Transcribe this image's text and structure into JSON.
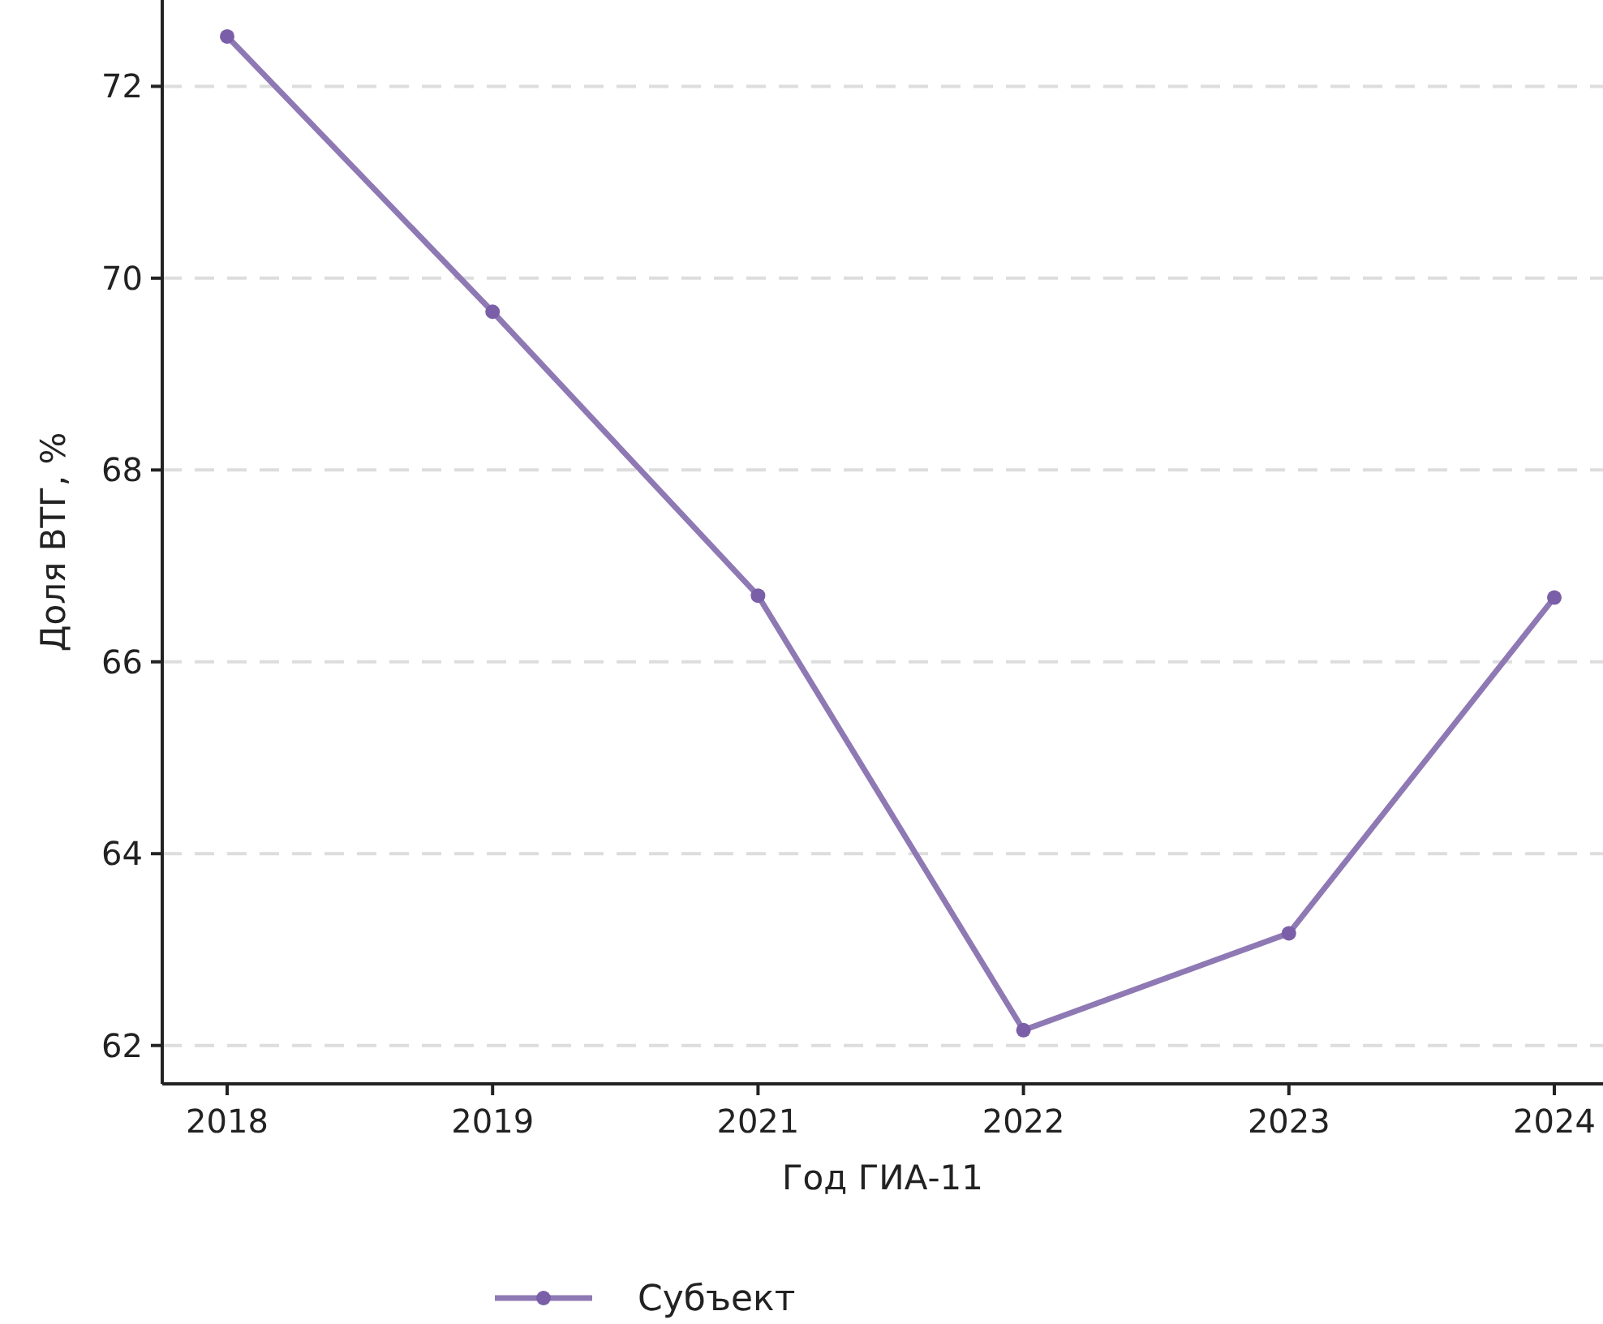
{
  "chart_data": {
    "type": "line",
    "xlabel": "Год ГИА-11",
    "ylabel": "Доля ВТГ, %",
    "categories": [
      "2018",
      "2019",
      "2021",
      "2022",
      "2023",
      "2024"
    ],
    "series": [
      {
        "name": "Субъект",
        "color": "#8e79b4",
        "values": [
          72.52,
          69.65,
          66.69,
          62.16,
          63.17,
          66.67
        ]
      }
    ],
    "ylim": [
      61.6,
      72.9
    ],
    "yticks": [
      62,
      64,
      66,
      68,
      70,
      72
    ],
    "grid": "y",
    "legend": "bottom",
    "marker": "circle",
    "line_style": "solid"
  }
}
